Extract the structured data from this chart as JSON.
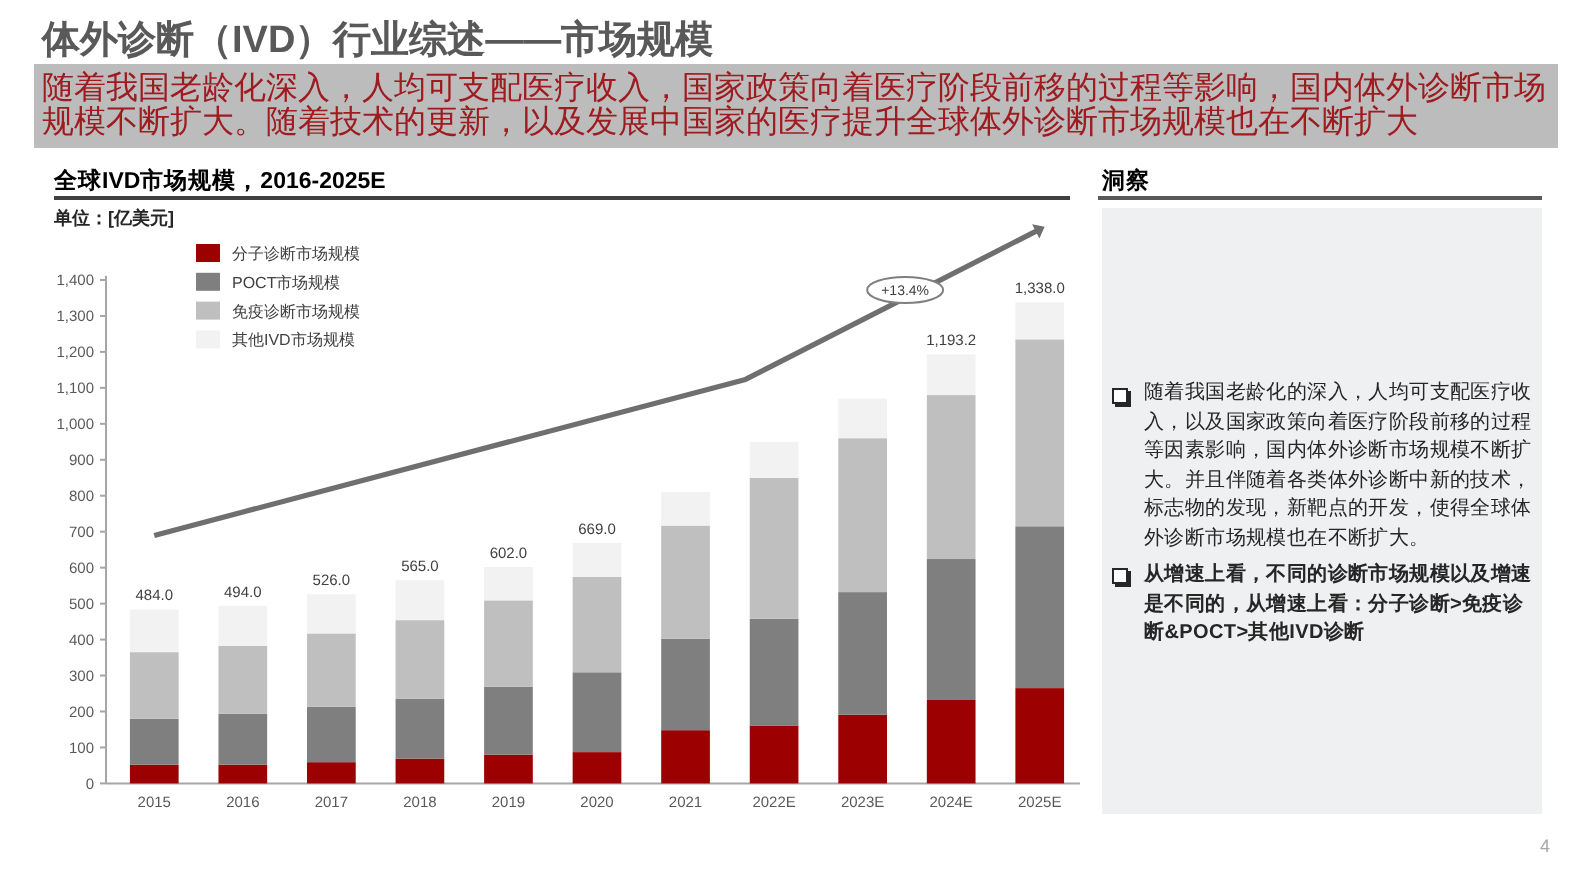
{
  "chart_data": {
    "type": "bar",
    "title": "体外诊断（IVD）行业综述——市场规模",
    "subtitle": "随着我国老龄化深入，人均可支配医疗收入，国家政策向着医疗阶段前移的过程等影响，国内体外诊断市场规模不断扩大。随着技术的更新，以及发展中国家的医疗提升全球体外诊断市场规模也在不断扩大",
    "ylabel": "单位：[亿美元]",
    "annotations": [
      "全球IVD市场规模，2016-2025E",
      "洞察",
      "随着我国老龄化的深入，人均可支配医疗收入，以及国家政策向着医疗阶段前移的过程等因素影响，国内体外诊断市场规模不断扩大。并且伴随着各类体外诊断中新的技术，标志物的发现，新靶点的开发，使得全球体外诊断市场规模也在不断扩大。",
      "从增速上看，不同的诊断市场规模以及增速是不同的，从增速上看：分子诊断>免疫诊断&POCT>其他IVD诊断",
      "+13.4%",
      "4"
    ],
    "categories": [
      "2015",
      "2016",
      "2017",
      "2018",
      "2019",
      "2020",
      "2021",
      "2022E",
      "2023E",
      "2024E",
      "2025E"
    ],
    "stacked": true,
    "series": [
      {
        "name": "分子诊断市场规模",
        "color": "#9c0000",
        "values": [
          52,
          52,
          59,
          69,
          80,
          87,
          148,
          161,
          191,
          232,
          265
        ]
      },
      {
        "name": "POCT市场规模",
        "color": "#7f7f7f",
        "values": [
          128,
          142,
          154,
          166,
          189,
          222,
          254,
          297,
          341,
          392,
          450
        ]
      },
      {
        "name": "免疫诊断市场规模",
        "color": "#bfbfbf",
        "values": [
          185,
          189,
          204,
          219,
          240,
          265,
          315,
          392,
          428,
          456,
          520
        ]
      },
      {
        "name": "其他IVD市场规模",
        "color": "#f2f2f2",
        "values": [
          119,
          111,
          109,
          111,
          93,
          95,
          93,
          100,
          110,
          113.2,
          103
        ]
      }
    ],
    "totals": [
      "484.0",
      "494.0",
      "526.0",
      "565.0",
      "602.0",
      "669.0",
      null,
      null,
      null,
      "1,193.2",
      "1,338.0"
    ],
    "ylim": [
      0,
      1400
    ],
    "yticks": [
      0,
      100,
      200,
      300,
      400,
      500,
      600,
      700,
      800,
      900,
      {
        "value": 1000,
        "label": "1,000"
      },
      {
        "value": 1100,
        "label": "1,100"
      },
      {
        "value": 1200,
        "label": "1,200"
      },
      {
        "value": 1300,
        "label": "1,300"
      },
      {
        "value": 1400,
        "label": "1,400"
      }
    ],
    "legend": "top left"
  }
}
